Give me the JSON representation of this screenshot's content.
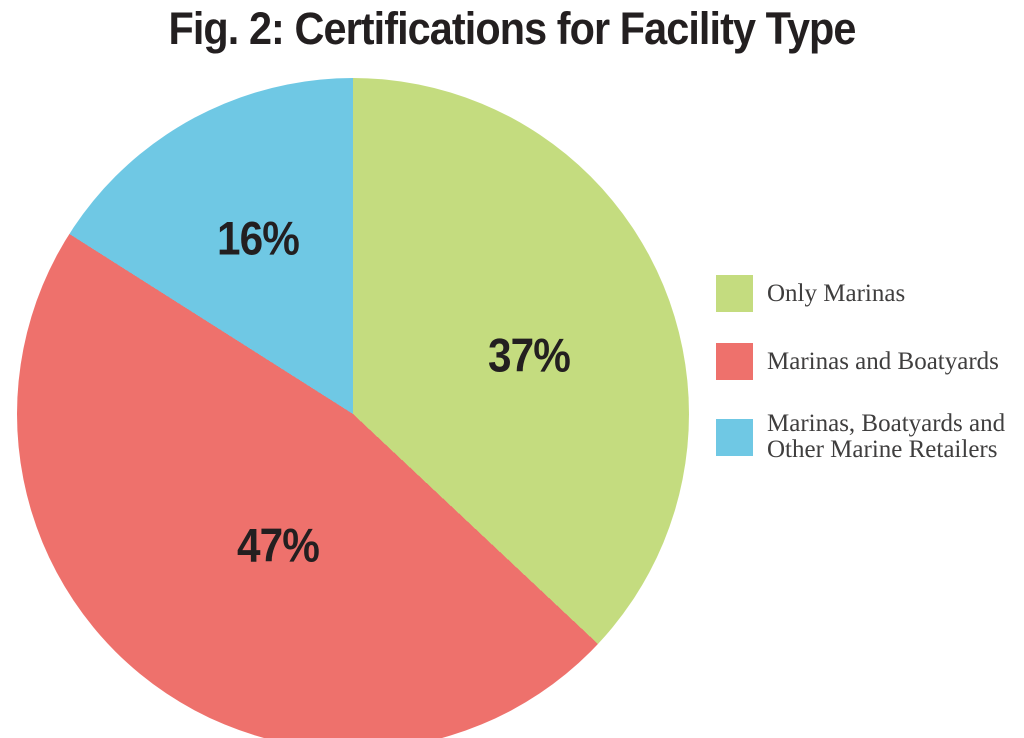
{
  "title": "Fig. 2: Certifications for Facility Type",
  "chart_data": {
    "type": "pie",
    "title": "Fig. 2: Certifications for Facility Type",
    "start_angle_deg": 0,
    "direction": "clockwise",
    "legend_position": "right",
    "slices": [
      {
        "label": "Only Marinas",
        "value": 37,
        "display": "37%",
        "color": "#c4dc7f"
      },
      {
        "label": "Marinas and Boatyards",
        "value": 47,
        "display": "47%",
        "color": "#ee716c"
      },
      {
        "label": "Marinas, Boatyards and Other Marine Retailers",
        "value": 16,
        "display": "16%",
        "color": "#6fc8e4"
      }
    ]
  },
  "legend": {
    "items": [
      {
        "lines": [
          "Only Marinas"
        ]
      },
      {
        "lines": [
          "Marinas and Boatyards"
        ]
      },
      {
        "lines": [
          "Marinas, Boatyards and",
          "Other Marine Retailers"
        ]
      }
    ]
  },
  "colors": {
    "background": "#ffffff",
    "label_text": "#231f20",
    "legend_text": "#3f3e3e"
  }
}
